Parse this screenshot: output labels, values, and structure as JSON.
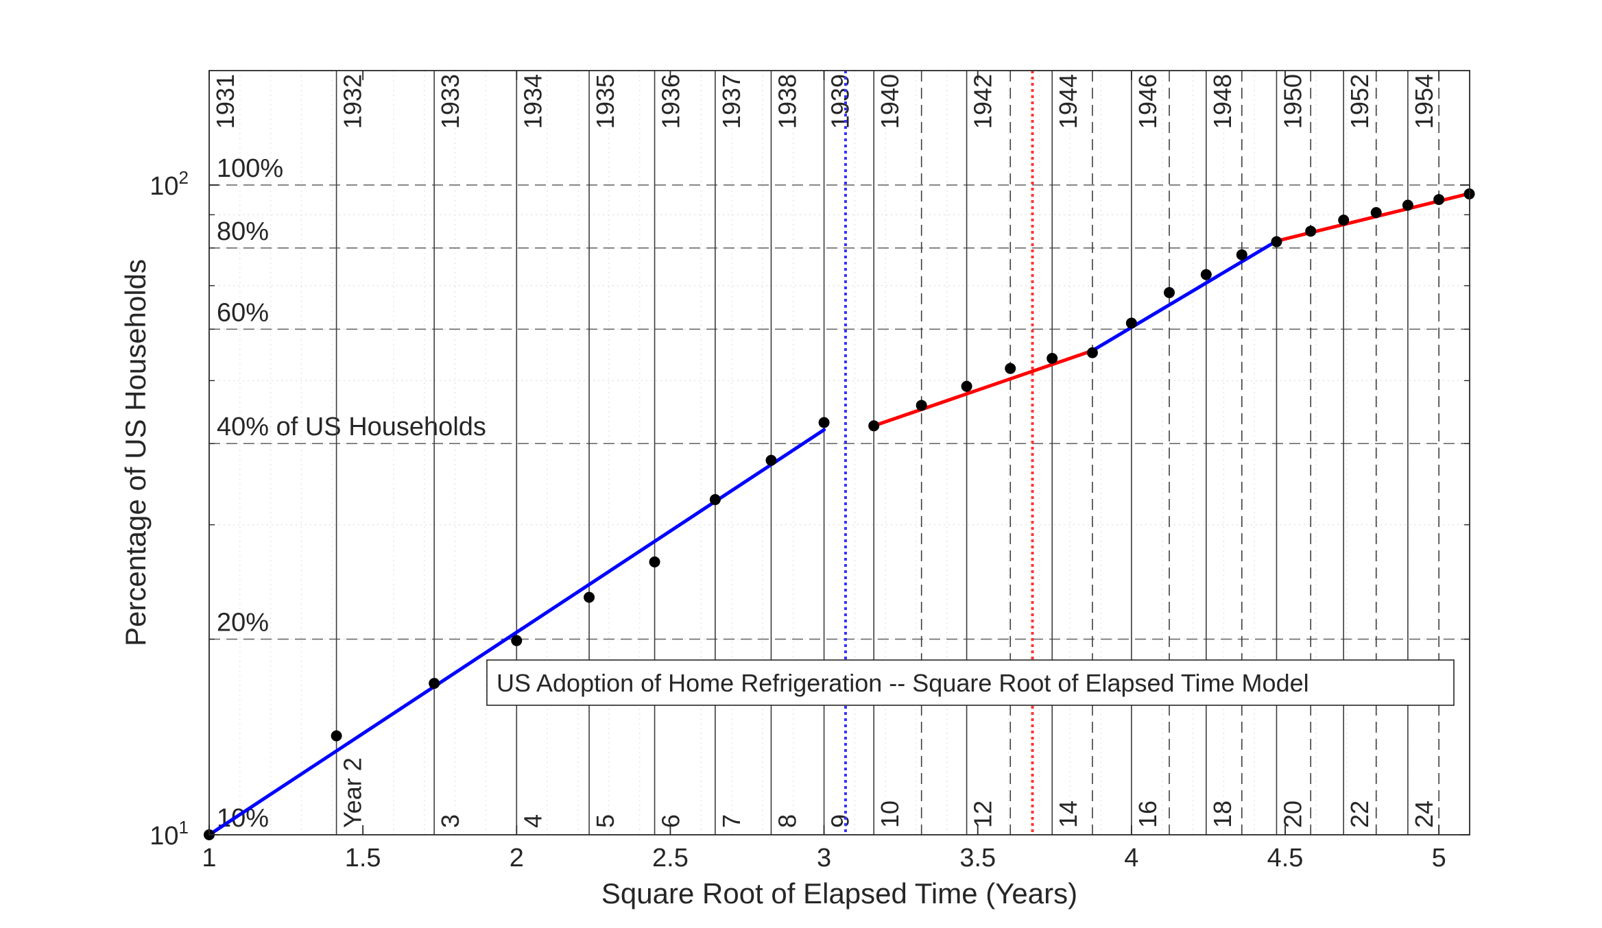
{
  "chart_data": {
    "type": "line",
    "title": "US Adoption of Home Refrigeration -- Square Root of Elapsed Time Model",
    "xlabel": "Square Root of Elapsed Time (Years)",
    "ylabel": "Percentage of US Households",
    "xlim": [
      1,
      5.1
    ],
    "ylim": [
      10,
      150
    ],
    "yscale": "log",
    "x_ticks": [
      {
        "v": 1,
        "label": "1"
      },
      {
        "v": 1.5,
        "label": "1.5"
      },
      {
        "v": 2,
        "label": "2"
      },
      {
        "v": 2.5,
        "label": "2.5"
      },
      {
        "v": 3,
        "label": "3"
      },
      {
        "v": 3.5,
        "label": "3.5"
      },
      {
        "v": 4,
        "label": "4"
      },
      {
        "v": 4.5,
        "label": "4.5"
      },
      {
        "v": 5,
        "label": "5"
      }
    ],
    "y_ticks": [
      {
        "v": 10,
        "base": "10",
        "exp": "1"
      },
      {
        "v": 100,
        "base": "10",
        "exp": "2"
      }
    ],
    "grid": true,
    "data_points": {
      "x": [
        1,
        1.414,
        1.732,
        2,
        2.236,
        2.449,
        2.646,
        2.828,
        3,
        3.162,
        3.317,
        3.464,
        3.606,
        3.742,
        3.873,
        4,
        4.123,
        4.243,
        4.359,
        4.472,
        4.583,
        4.69,
        4.796,
        4.899,
        5,
        5.099
      ],
      "y": [
        10,
        14.2,
        17.1,
        19.9,
        23.2,
        26.3,
        32.8,
        37.7,
        43.1,
        42.6,
        45.8,
        49.0,
        52.2,
        54.1,
        55.2,
        61.3,
        68.3,
        72.8,
        78.1,
        81.8,
        84.9,
        88.3,
        90.7,
        93.1,
        95.0,
        96.9
      ]
    },
    "series": [
      {
        "color": "#0000ff",
        "x": [
          1,
          3.0
        ],
        "y": [
          10,
          42.0
        ]
      },
      {
        "color": "#ff0000",
        "x": [
          3.162,
          3.873
        ],
        "y": [
          42.6,
          55.6
        ]
      },
      {
        "color": "#0000ff",
        "x": [
          3.873,
          4.472
        ],
        "y": [
          55.6,
          82.0
        ]
      },
      {
        "color": "#ff0000",
        "x": [
          4.472,
          5.099
        ],
        "y": [
          82.0,
          97.0
        ]
      }
    ],
    "reference_lines": [
      {
        "x": 3.07,
        "color": "#3333ff",
        "style": "dotted"
      },
      {
        "x": 3.678,
        "color": "#ff3333",
        "style": "dotted"
      }
    ],
    "year_lines": [
      {
        "x": 1,
        "year": "1931",
        "n": "",
        "style": "solid"
      },
      {
        "x": 1.414,
        "year": "1932",
        "n": "Year 2",
        "style": "solid"
      },
      {
        "x": 1.732,
        "year": "1933",
        "n": "3",
        "style": "solid"
      },
      {
        "x": 2,
        "year": "1934",
        "n": "4",
        "style": "solid"
      },
      {
        "x": 2.236,
        "year": "1935",
        "n": "5",
        "style": "solid"
      },
      {
        "x": 2.449,
        "year": "1936",
        "n": "6",
        "style": "solid"
      },
      {
        "x": 2.646,
        "year": "1937",
        "n": "7",
        "style": "solid"
      },
      {
        "x": 2.828,
        "year": "1938",
        "n": "8",
        "style": "solid"
      },
      {
        "x": 3,
        "year": "1939",
        "n": "9",
        "style": "solid"
      },
      {
        "x": 3.162,
        "year": "1940",
        "n": "10",
        "style": "solid"
      },
      {
        "x": 3.317,
        "year": "",
        "n": "",
        "style": "dashed"
      },
      {
        "x": 3.464,
        "year": "1942",
        "n": "12",
        "style": "solid"
      },
      {
        "x": 3.606,
        "year": "",
        "n": "",
        "style": "dashed"
      },
      {
        "x": 3.742,
        "year": "1944",
        "n": "14",
        "style": "solid"
      },
      {
        "x": 3.873,
        "year": "",
        "n": "",
        "style": "dashed"
      },
      {
        "x": 4,
        "year": "1946",
        "n": "16",
        "style": "solid"
      },
      {
        "x": 4.123,
        "year": "",
        "n": "",
        "style": "dashed"
      },
      {
        "x": 4.243,
        "year": "1948",
        "n": "18",
        "style": "solid"
      },
      {
        "x": 4.359,
        "year": "",
        "n": "",
        "style": "dashed"
      },
      {
        "x": 4.472,
        "year": "1950",
        "n": "20",
        "style": "solid"
      },
      {
        "x": 4.583,
        "year": "",
        "n": "",
        "style": "dashed"
      },
      {
        "x": 4.69,
        "year": "1952",
        "n": "22",
        "style": "solid"
      },
      {
        "x": 4.796,
        "year": "",
        "n": "",
        "style": "dashed"
      },
      {
        "x": 4.899,
        "year": "1954",
        "n": "24",
        "style": "solid"
      },
      {
        "x": 5,
        "year": "",
        "n": "",
        "style": "dashed"
      }
    ],
    "percent_lines": [
      {
        "y": 10,
        "label": "10%"
      },
      {
        "y": 20,
        "label": "20%"
      },
      {
        "y": 40,
        "label": "40% of US Households"
      },
      {
        "y": 60,
        "label": "60%"
      },
      {
        "y": 80,
        "label": "80%"
      },
      {
        "y": 100,
        "label": "100%"
      }
    ],
    "legend_box_position": "bottom-right"
  }
}
